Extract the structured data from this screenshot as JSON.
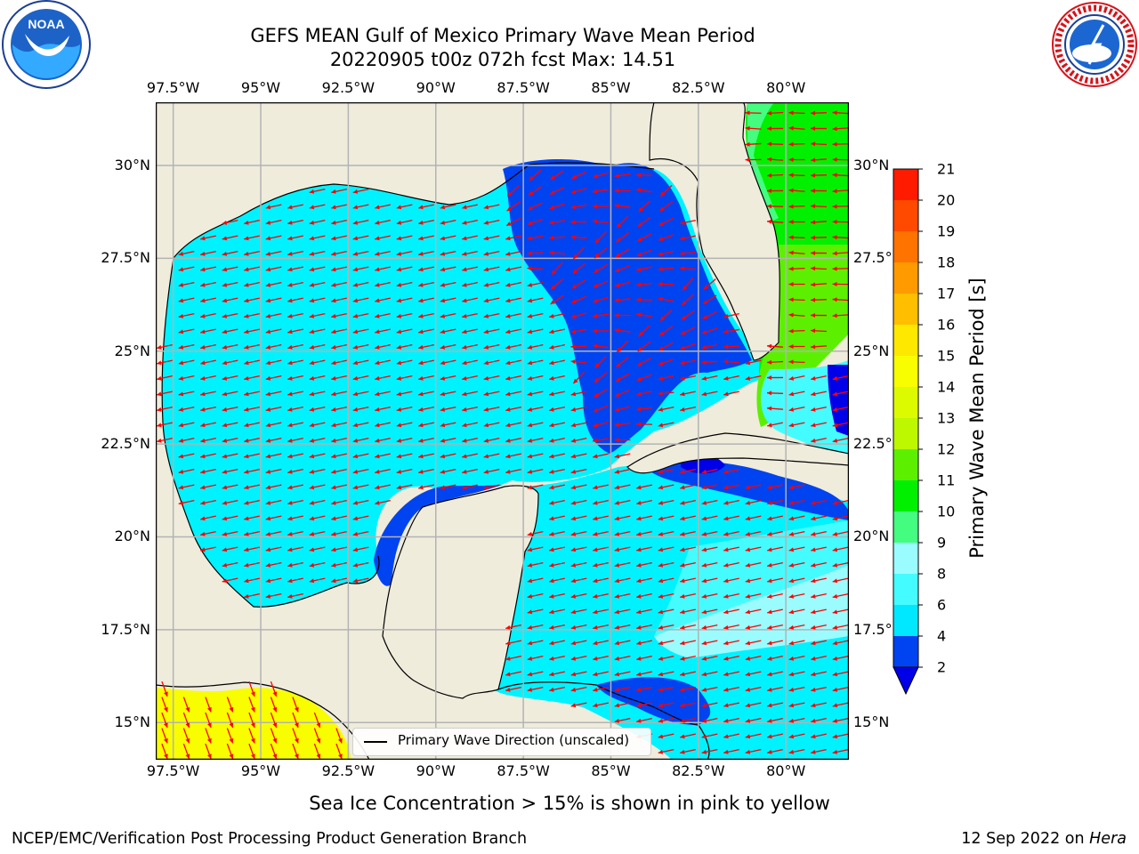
{
  "title": {
    "line1": "GEFS MEAN Gulf of Mexico Primary Wave Mean Period",
    "line2": "20220905 t00z 072h fcst   Max: 14.51"
  },
  "logos": {
    "left": {
      "name": "NOAA",
      "text": "NOAA",
      "ring_text": "NATIONAL OCEANIC AND ATMOSPHERIC ADMINISTRATION · U.S. DEPARTMENT OF COMMERCE"
    },
    "right": {
      "name": "National Weather Service",
      "ring_text": "NATIONAL WEATHER SERVICE"
    }
  },
  "map": {
    "longitude_ticks": [
      "97.5°W",
      "95°W",
      "92.5°W",
      "90°W",
      "87.5°W",
      "85°W",
      "82.5°W",
      "80°W"
    ],
    "latitude_ticks_left": [
      "30°N",
      "27.5°N",
      "25°N",
      "22.5°N",
      "20°N",
      "17.5°N",
      "15°N"
    ],
    "latitude_ticks_right": [
      "30°N",
      "27.5°N",
      "25°N",
      "22.5°N",
      "20°N",
      "17.5°N",
      "15°N"
    ],
    "extent": {
      "lon_min": -98,
      "lon_max": -78.2,
      "lat_min": 14,
      "lat_max": 31.7
    },
    "grid": true,
    "legend": {
      "text": "Primary Wave Direction (unscaled)",
      "position": "bottom-center"
    },
    "arrow_color": "#ff0000",
    "land_color": "#efecdc"
  },
  "colorbar": {
    "label": "Primary Wave Mean Period [s]",
    "ticks": [
      "2",
      "4",
      "6",
      "8",
      "9",
      "10",
      "11",
      "12",
      "13",
      "14",
      "15",
      "16",
      "17",
      "18",
      "19",
      "20",
      "21"
    ],
    "colors": [
      "#0043f0",
      "#00e8ff",
      "#44fcff",
      "#9afcff",
      "#44fc80",
      "#00f000",
      "#5cf000",
      "#bdf700",
      "#ddfb00",
      "#f8fd00",
      "#ffe800",
      "#ffbf00",
      "#ff9b00",
      "#ff7300",
      "#ff4a00",
      "#ff1b00"
    ],
    "under_color": "#0000e8"
  },
  "footnote": "Sea Ice Concentration > 15% is shown in pink to yellow",
  "credit": {
    "left": "NCEP/EMC/Verification Post Processing Product Generation Branch",
    "right_date": "12 Sep 2022 on ",
    "right_host": "Hera"
  }
}
